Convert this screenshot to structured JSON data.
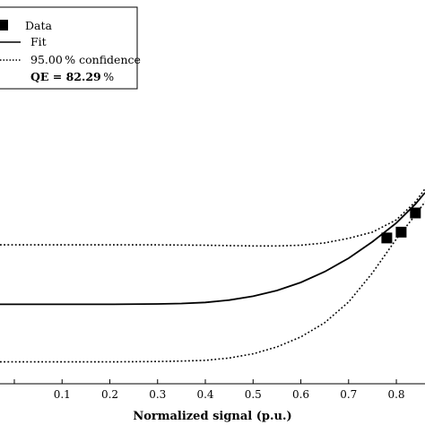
{
  "chart_data": {
    "type": "line",
    "xlabel": "Normalized signal (p.u.)",
    "xlim": [
      -0.03,
      0.86
    ],
    "ylim": [
      0,
      1
    ],
    "x_ticks": [
      "0.1",
      "0.2",
      "0.3",
      "0.4",
      "0.5",
      "0.6",
      "0.7",
      "0.8"
    ],
    "grid": false,
    "legend_position": "top-left",
    "legend": {
      "data_label": "Data",
      "fit_label": "Fit",
      "confidence_label": "95.00 % confidence",
      "qe_prefix": "QE = ",
      "qe_value": "82.29",
      "qe_suffix": " %"
    },
    "series": [
      {
        "name": "Data",
        "style": "markers",
        "color": "#000000",
        "x": [
          0.78,
          0.81,
          0.84
        ],
        "y": [
          0.38,
          0.395,
          0.445
        ]
      },
      {
        "name": "Fit",
        "style": "solid",
        "color": "#000000",
        "x": [
          -0.03,
          0.1,
          0.2,
          0.3,
          0.35,
          0.4,
          0.45,
          0.5,
          0.55,
          0.6,
          0.65,
          0.7,
          0.75,
          0.8,
          0.84,
          0.86
        ],
        "y": [
          0.207,
          0.207,
          0.207,
          0.208,
          0.209,
          0.212,
          0.218,
          0.228,
          0.243,
          0.264,
          0.292,
          0.327,
          0.37,
          0.419,
          0.468,
          0.498
        ]
      },
      {
        "name": "95.00 % confidence",
        "style": "dotted",
        "color": "#000000",
        "x": [
          -0.03,
          0.1,
          0.2,
          0.3,
          0.4,
          0.5,
          0.55,
          0.6,
          0.65,
          0.7,
          0.75,
          0.8,
          0.84,
          0.86
        ],
        "y": [
          0.362,
          0.362,
          0.362,
          0.362,
          0.361,
          0.359,
          0.359,
          0.361,
          0.367,
          0.379,
          0.395,
          0.427,
          0.474,
          0.508
        ]
      },
      {
        "name": "95.00 % confidence (lower)",
        "style": "dotted",
        "color": "#000000",
        "x": [
          -0.03,
          0.1,
          0.2,
          0.3,
          0.35,
          0.4,
          0.45,
          0.5,
          0.55,
          0.6,
          0.65,
          0.7,
          0.75,
          0.8,
          0.84,
          0.86
        ],
        "y": [
          0.057,
          0.057,
          0.057,
          0.058,
          0.059,
          0.061,
          0.067,
          0.078,
          0.096,
          0.122,
          0.159,
          0.213,
          0.289,
          0.377,
          0.44,
          0.474
        ]
      }
    ]
  }
}
